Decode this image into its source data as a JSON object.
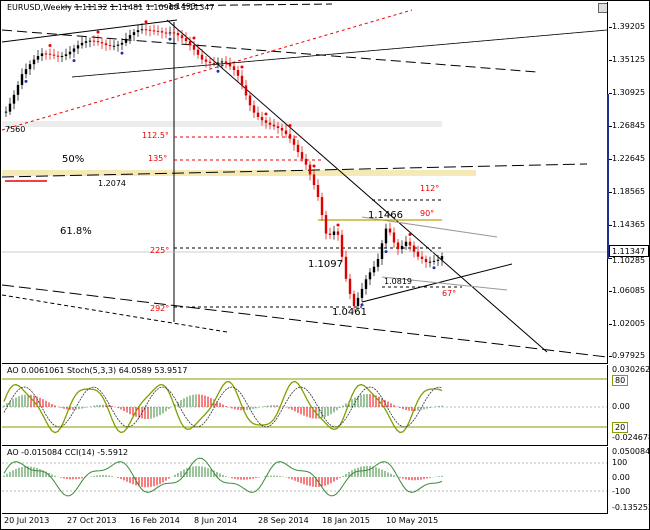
{
  "main": {
    "title": "EURUSD,Weekly  1.11132 1.11481 1.10969 1.11347",
    "price_tag": "1.11347",
    "top_label": "1.1493",
    "left_label": "7560",
    "fib_pct": [
      "50%",
      "61.8%"
    ],
    "level_1_2074": "1.2074",
    "angles": [
      "112.5°",
      "135°",
      "225°",
      "292°",
      "112°",
      "90°",
      "67°"
    ],
    "swing_labels": [
      "1.1466",
      "1.1097",
      "1.0819",
      "1.0461"
    ],
    "price_scale": [
      "1.39205",
      "1.35125",
      "1.30925",
      "1.26845",
      "1.22645",
      "1.18565",
      "1.14365",
      "1.10285",
      "1.06085",
      "1.02005",
      "0.97925"
    ]
  },
  "stoch": {
    "title": "AO 0.0061061  Stoch(5,3,3) 64.0589 53.9517",
    "scale": [
      "0.030262",
      "80",
      "0.00",
      "20",
      "-0.024678"
    ]
  },
  "cci": {
    "title": "AO -0.015084  CCI(14) -5.5912",
    "scale": [
      "0.050084",
      "100",
      "0.00",
      "-100",
      "-0.135252"
    ]
  },
  "time_axis": [
    "20 Jul 2013",
    "27 Oct 2013",
    "16 Feb 2014",
    "8 Jun 2014",
    "28 Sep 2014",
    "18 Jan 2015",
    "10 May 2015"
  ],
  "colors": {
    "bull": "#000000",
    "bear": "#e00000",
    "zone": "#f5e9b5",
    "ind": "#7fa000"
  }
}
